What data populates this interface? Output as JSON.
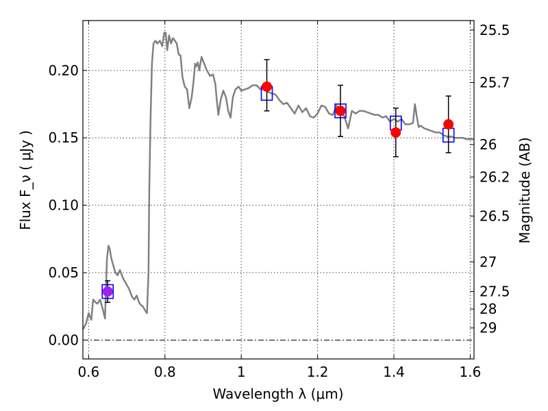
{
  "chart_data": {
    "type": "line",
    "xlabel": "Wavelength  λ (μm)",
    "ylabel": "Flux  F_ν  ( μJy )",
    "ylabel_right": "Magnitude (AB)",
    "xlim": [
      0.585,
      1.61
    ],
    "ylim": [
      -0.014,
      0.237
    ],
    "grid": true,
    "x_ticks": [
      0.6,
      0.8,
      1.0,
      1.2,
      1.4,
      1.6
    ],
    "x_tick_labels": [
      "0.6",
      "0.8",
      "1",
      "1.2",
      "1.4",
      "1.6"
    ],
    "y_ticks": [
      0.0,
      0.05,
      0.1,
      0.15,
      0.2
    ],
    "y_tick_labels": [
      "0.00",
      "0.05",
      "0.10",
      "0.15",
      "0.20"
    ],
    "mag_ticks": [
      {
        "label": "25.5",
        "flux": 0.23
      },
      {
        "label": "25.7",
        "flux": 0.191
      },
      {
        "label": "26",
        "flux": 0.145
      },
      {
        "label": "26.2",
        "flux": 0.121
      },
      {
        "label": "26.5",
        "flux": 0.092
      },
      {
        "label": "27",
        "flux": 0.058
      },
      {
        "label": "27.5",
        "flux": 0.036
      },
      {
        "label": "28",
        "flux": 0.023
      },
      {
        "label": "29",
        "flux": 0.009
      }
    ],
    "zero_line": 0.0,
    "series": [
      {
        "kind": "model-spectrum",
        "color": "#808080",
        "x": [
          0.585,
          0.593,
          0.6,
          0.607,
          0.612,
          0.618,
          0.623,
          0.63,
          0.638,
          0.643,
          0.648,
          0.652,
          0.655,
          0.66,
          0.665,
          0.67,
          0.676,
          0.682,
          0.69,
          0.698,
          0.706,
          0.714,
          0.72,
          0.726,
          0.732,
          0.737,
          0.742,
          0.748,
          0.753,
          0.757,
          0.759,
          0.762,
          0.766,
          0.77,
          0.775,
          0.78,
          0.787,
          0.793,
          0.798,
          0.802,
          0.806,
          0.811,
          0.816,
          0.821,
          0.826,
          0.831,
          0.836,
          0.841,
          0.846,
          0.852,
          0.858,
          0.864,
          0.87,
          0.875,
          0.879,
          0.882,
          0.886,
          0.89,
          0.896,
          0.903,
          0.91,
          0.918,
          0.926,
          0.932,
          0.936,
          0.94,
          0.946,
          0.953,
          0.96,
          0.966,
          0.972,
          0.978,
          0.985,
          0.993,
          1.0,
          1.01,
          1.02,
          1.03,
          1.04,
          1.05,
          1.06,
          1.07,
          1.08,
          1.09,
          1.1,
          1.11,
          1.12,
          1.13,
          1.14,
          1.15,
          1.16,
          1.17,
          1.18,
          1.19,
          1.2,
          1.21,
          1.22,
          1.23,
          1.24,
          1.25,
          1.26,
          1.27,
          1.28,
          1.29,
          1.3,
          1.31,
          1.32,
          1.33,
          1.34,
          1.35,
          1.36,
          1.37,
          1.38,
          1.39,
          1.4,
          1.41,
          1.42,
          1.43,
          1.44,
          1.45,
          1.455,
          1.46,
          1.465,
          1.47,
          1.48,
          1.49,
          1.5,
          1.51,
          1.52,
          1.53,
          1.54,
          1.55,
          1.56,
          1.57,
          1.58,
          1.59,
          1.6,
          1.61
        ],
        "y": [
          0.008,
          0.012,
          0.02,
          0.015,
          0.03,
          0.028,
          0.027,
          0.03,
          0.022,
          0.016,
          0.06,
          0.07,
          0.068,
          0.06,
          0.055,
          0.05,
          0.048,
          0.052,
          0.046,
          0.042,
          0.038,
          0.032,
          0.03,
          0.033,
          0.028,
          0.026,
          0.025,
          0.022,
          0.02,
          0.05,
          0.11,
          0.16,
          0.205,
          0.22,
          0.222,
          0.22,
          0.222,
          0.218,
          0.228,
          0.228,
          0.215,
          0.226,
          0.22,
          0.224,
          0.222,
          0.22,
          0.212,
          0.211,
          0.195,
          0.188,
          0.186,
          0.172,
          0.18,
          0.192,
          0.205,
          0.203,
          0.206,
          0.2,
          0.21,
          0.205,
          0.2,
          0.196,
          0.197,
          0.19,
          0.178,
          0.167,
          0.178,
          0.185,
          0.18,
          0.17,
          0.165,
          0.18,
          0.186,
          0.188,
          0.185,
          0.186,
          0.187,
          0.189,
          0.189,
          0.186,
          0.186,
          0.184,
          0.183,
          0.182,
          0.178,
          0.175,
          0.176,
          0.172,
          0.168,
          0.174,
          0.169,
          0.172,
          0.166,
          0.165,
          0.168,
          0.174,
          0.173,
          0.168,
          0.167,
          0.174,
          0.17,
          0.166,
          0.157,
          0.17,
          0.168,
          0.17,
          0.17,
          0.169,
          0.168,
          0.167,
          0.167,
          0.165,
          0.166,
          0.162,
          0.164,
          0.162,
          0.164,
          0.16,
          0.16,
          0.161,
          0.175,
          0.166,
          0.158,
          0.159,
          0.157,
          0.156,
          0.155,
          0.154,
          0.154,
          0.152,
          0.151,
          0.151,
          0.15,
          0.15,
          0.15,
          0.149,
          0.149,
          0.149
        ]
      }
    ],
    "model_points": {
      "color": "#0000ff",
      "x": [
        0.65,
        1.067,
        1.26,
        1.405,
        1.543
      ],
      "y": [
        0.036,
        0.183,
        0.17,
        0.161,
        0.152
      ]
    },
    "observed_points": {
      "color": "#ff0000",
      "x": [
        0.65,
        1.067,
        1.26,
        1.405,
        1.543
      ],
      "y": [
        0.036,
        0.188,
        0.17,
        0.154,
        0.16
      ],
      "yerr_low": [
        0.008,
        0.018,
        0.019,
        0.018,
        0.021
      ],
      "yerr_high": [
        0.008,
        0.02,
        0.019,
        0.018,
        0.021
      ],
      "first_point_color": "#a020f0"
    }
  }
}
